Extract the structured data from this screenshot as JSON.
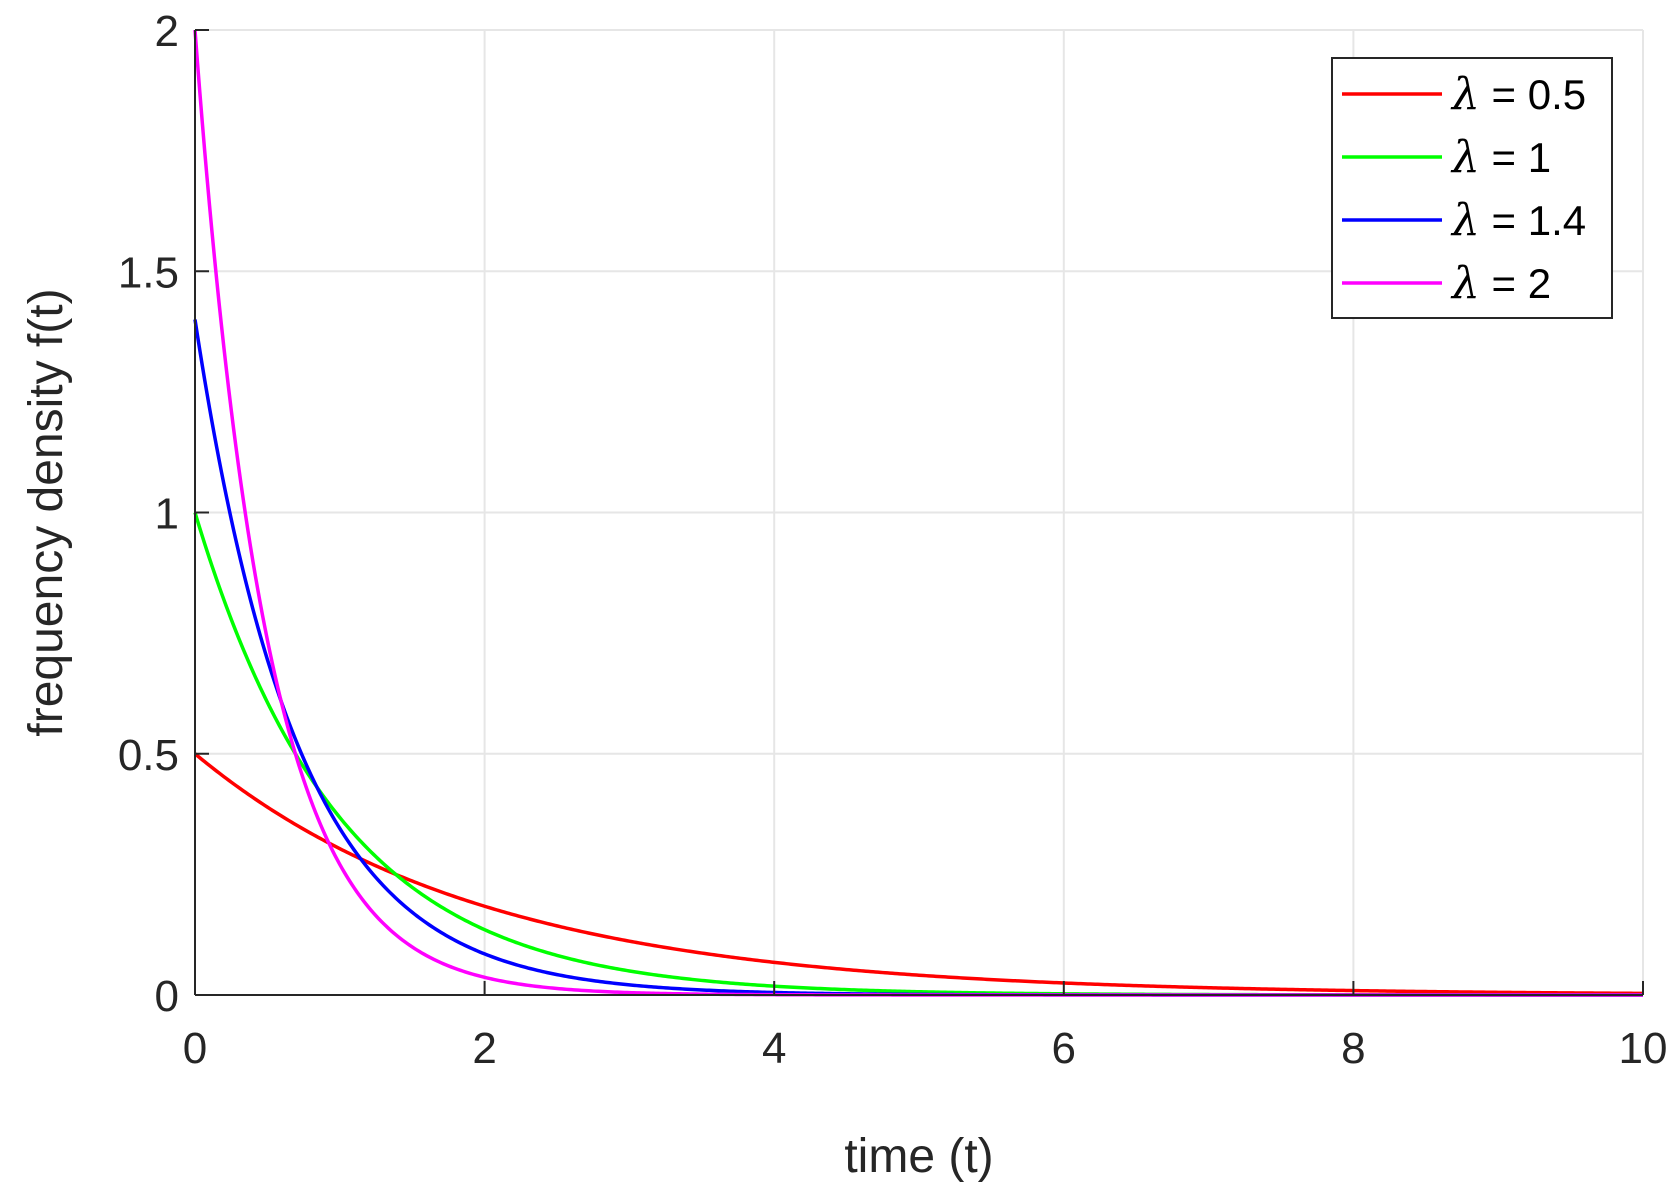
{
  "chart_data": {
    "type": "line",
    "title": "",
    "xlabel": "time (t)",
    "ylabel": "frequency density f(t)",
    "xlim": [
      0,
      10
    ],
    "ylim": [
      0,
      2
    ],
    "xticks": [
      0,
      2,
      4,
      6,
      8,
      10
    ],
    "xtick_labels": [
      "0",
      "2",
      "4",
      "6",
      "8",
      "10"
    ],
    "yticks": [
      0,
      0.5,
      1,
      1.5,
      2
    ],
    "ytick_labels": [
      "0",
      "0.5",
      "1",
      "1.5",
      "2"
    ],
    "grid": true,
    "legend_position": "top-right",
    "legend_symbol": "λ",
    "x": [
      0,
      0.25,
      0.5,
      0.75,
      1,
      1.25,
      1.5,
      1.75,
      2,
      2.5,
      3,
      3.5,
      4,
      5,
      6,
      7,
      8,
      9,
      10
    ],
    "series": [
      {
        "name": "λ = 0.5",
        "legend_value": "= 0.5",
        "color": "#ff0000",
        "values": [
          0.5,
          0.441,
          0.389,
          0.344,
          0.303,
          0.268,
          0.236,
          0.208,
          0.184,
          0.143,
          0.112,
          0.087,
          0.068,
          0.041,
          0.025,
          0.015,
          0.009,
          0.006,
          0.003
        ]
      },
      {
        "name": "λ = 1",
        "legend_value": "= 1",
        "color": "#00ff00",
        "values": [
          1.0,
          0.779,
          0.607,
          0.472,
          0.368,
          0.287,
          0.223,
          0.174,
          0.135,
          0.082,
          0.05,
          0.03,
          0.018,
          0.007,
          0.002,
          0.001,
          0.0,
          0.0,
          0.0
        ]
      },
      {
        "name": "λ = 1.4",
        "legend_value": "= 1.4",
        "color": "#0000ff",
        "values": [
          1.4,
          0.987,
          0.695,
          0.49,
          0.345,
          0.243,
          0.171,
          0.121,
          0.085,
          0.042,
          0.021,
          0.01,
          0.005,
          0.001,
          0.0,
          0.0,
          0.0,
          0.0,
          0.0
        ]
      },
      {
        "name": "λ = 2",
        "legend_value": "= 2",
        "color": "#ff00ff",
        "values": [
          2.0,
          1.213,
          0.736,
          0.446,
          0.271,
          0.164,
          0.1,
          0.06,
          0.037,
          0.013,
          0.005,
          0.002,
          0.001,
          0.0,
          0.0,
          0.0,
          0.0,
          0.0,
          0.0
        ]
      }
    ]
  }
}
